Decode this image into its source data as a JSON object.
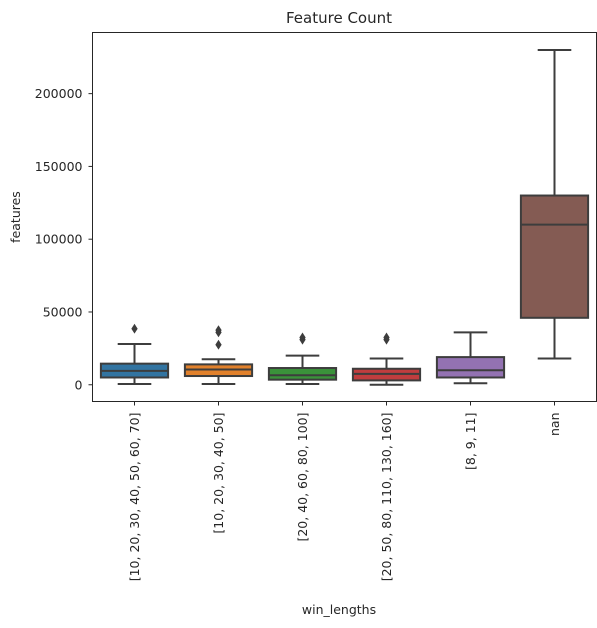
{
  "chart_data": {
    "type": "box",
    "title": "Feature Count",
    "xlabel": "win_lengths",
    "ylabel": "features",
    "ylim": [
      -11500,
      242000
    ],
    "yticks": [
      0,
      50000,
      100000,
      150000,
      200000
    ],
    "ytick_labels": [
      "0",
      "50000",
      "100000",
      "150000",
      "200000"
    ],
    "grid": false,
    "categories": [
      "[10, 20, 30, 40, 50, 60, 70]",
      "[10, 20, 30, 40, 50]",
      "[20, 40, 60, 80, 100]",
      "[20, 50, 80, 110, 130, 160]",
      "[8, 9, 11]",
      "nan"
    ],
    "boxes": [
      {
        "whisker_low": 500,
        "q1": 5000,
        "median": 9500,
        "q3": 14500,
        "whisker_high": 28000,
        "outliers": [
          38500
        ]
      },
      {
        "whisker_low": 500,
        "q1": 6000,
        "median": 10500,
        "q3": 14000,
        "whisker_high": 17500,
        "outliers": [
          27500,
          36000,
          37500
        ]
      },
      {
        "whisker_low": 500,
        "q1": 3500,
        "median": 6500,
        "q3": 11500,
        "whisker_high": 20000,
        "outliers": [
          31000,
          32500
        ]
      },
      {
        "whisker_low": 0,
        "q1": 3000,
        "median": 7500,
        "q3": 11000,
        "whisker_high": 18000,
        "outliers": [
          31000,
          32500
        ]
      },
      {
        "whisker_low": 1000,
        "q1": 5000,
        "median": 10000,
        "q3": 19000,
        "whisker_high": 36000,
        "outliers": []
      },
      {
        "whisker_low": 18000,
        "q1": 46000,
        "median": 110000,
        "q3": 130000,
        "whisker_high": 230000,
        "outliers": []
      }
    ],
    "colors": [
      "#3274a1",
      "#e1812c",
      "#3a923a",
      "#c03d3e",
      "#9372b2",
      "#845b53"
    ]
  }
}
